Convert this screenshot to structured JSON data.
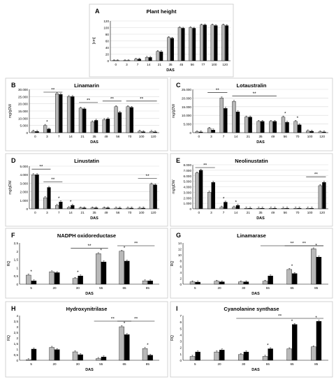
{
  "colors": {
    "grey": "#b8b8b8",
    "black": "#000000",
    "panel_border": "#c8c8c8",
    "grid": "#d9d9d9"
  },
  "chart_data": [
    {
      "letter": "A",
      "type": "bar",
      "title": "Plant height",
      "xlabel": "DAS",
      "ylabel": "[cm]",
      "categories": [
        "0",
        "3",
        "7",
        "14",
        "21",
        "35",
        "45",
        "56",
        "77",
        "100",
        "120"
      ],
      "ylim": [
        0,
        120
      ],
      "yticks": [
        "0",
        "20",
        "40",
        "60",
        "80",
        "100",
        "120"
      ],
      "grid": true,
      "series": [
        {
          "values": [
            0,
            0,
            5,
            10,
            28,
            70,
            100,
            100,
            108,
            108,
            108
          ]
        },
        {
          "values": [
            0,
            0,
            5,
            10,
            27,
            68,
            98,
            98,
            108,
            106,
            106
          ]
        }
      ],
      "brackets": []
    },
    {
      "letter": "B",
      "type": "bar",
      "title": "Linamarin",
      "xlabel": "DAS",
      "ylabel": "mg/gDW",
      "categories": [
        "0",
        "3",
        "7",
        "14",
        "21",
        "35",
        "49",
        "56",
        "70",
        "100",
        "120"
      ],
      "ylim": [
        0,
        30000
      ],
      "yticks": [
        "0",
        "5.000",
        "10.000",
        "15.000",
        "20.000",
        "25.000",
        "30.000"
      ],
      "grid": true,
      "series": [
        {
          "values": [
            1000,
            5000,
            27000,
            25000,
            17000,
            7500,
            9000,
            18000,
            18000,
            1000,
            800
          ]
        },
        {
          "values": [
            800,
            2500,
            26500,
            25000,
            16500,
            8500,
            9500,
            14000,
            17500,
            600,
            500
          ]
        }
      ],
      "stars": [
        1
      ],
      "brackets": [
        [
          1,
          2
        ],
        [
          4,
          5
        ],
        [
          6,
          7
        ],
        [
          8,
          10
        ]
      ]
    },
    {
      "letter": "C",
      "type": "bar",
      "title": "Lotaustralin",
      "xlabel": "DAS",
      "ylabel": "mg/gDW",
      "categories": [
        "0",
        "3",
        "7",
        "14",
        "21",
        "35",
        "49",
        "56",
        "70",
        "100",
        "120"
      ],
      "ylim": [
        0,
        25000
      ],
      "yticks": [
        "0",
        "5.000",
        "10.000",
        "15.000",
        "20.000",
        "25.000"
      ],
      "grid": true,
      "series": [
        {
          "values": [
            500,
            2500,
            20000,
            18000,
            9000,
            6500,
            6500,
            9000,
            6500,
            1000,
            500
          ]
        },
        {
          "values": [
            400,
            1500,
            14000,
            12000,
            9000,
            6500,
            6500,
            6000,
            4500,
            800,
            400
          ]
        }
      ],
      "stars": [
        7,
        8
      ],
      "brackets": [
        [
          1,
          2
        ],
        [
          3,
          6
        ]
      ]
    },
    {
      "letter": "D",
      "type": "bar",
      "title": "Linustatin",
      "xlabel": "DAS",
      "ylabel": "mg/gDW",
      "categories": [
        "0",
        "3",
        "7",
        "14",
        "21",
        "35",
        "49",
        "56",
        "70",
        "100",
        "120"
      ],
      "ylim": [
        0,
        5000
      ],
      "yticks": [
        "0",
        "1.000",
        "2.000",
        "3.000",
        "4.000",
        "5.000"
      ],
      "grid": true,
      "series": [
        {
          "values": [
            4000,
            1300,
            400,
            150,
            100,
            100,
            100,
            80,
            80,
            80,
            2900
          ]
        },
        {
          "values": [
            4000,
            2500,
            800,
            400,
            100,
            100,
            100,
            80,
            80,
            80,
            2800
          ]
        }
      ],
      "stars": [
        2,
        3
      ],
      "brackets": [
        [
          0,
          1
        ],
        [
          1,
          2
        ],
        [
          9,
          10
        ]
      ]
    },
    {
      "letter": "E",
      "type": "bar",
      "title": "Neolinustatin",
      "xlabel": "DAS",
      "ylabel": "mg/gDW",
      "categories": [
        "0",
        "3",
        "7",
        "14",
        "21",
        "35",
        "49",
        "56",
        "70",
        "100",
        "120"
      ],
      "ylim": [
        0,
        8000
      ],
      "yticks": [
        "0",
        "1.000",
        "2.000",
        "3.000",
        "4.000",
        "5.000",
        "6.000",
        "7.000",
        "8.000"
      ],
      "grid": true,
      "series": [
        {
          "values": [
            6500,
            3000,
            300,
            300,
            100,
            100,
            100,
            100,
            100,
            100,
            4200
          ]
        },
        {
          "values": [
            7000,
            4800,
            1200,
            600,
            100,
            100,
            100,
            100,
            100,
            100,
            4800
          ]
        }
      ],
      "stars": [
        2,
        3
      ],
      "brackets": [
        [
          0,
          1
        ],
        [
          9,
          10
        ]
      ]
    },
    {
      "letter": "F",
      "type": "bar",
      "title": "NADPH oxidoreductase",
      "xlabel": "DAS",
      "ylabel": "RQ",
      "categories": [
        "5",
        "20",
        "30",
        "55",
        "65",
        "85"
      ],
      "ylim": [
        0,
        2.5
      ],
      "yticks": [
        "0",
        "0,5",
        "1",
        "1,5",
        "2",
        "2,5"
      ],
      "grid": false,
      "series": [
        {
          "values": [
            0.55,
            0.75,
            0.35,
            1.85,
            2.0,
            0.2
          ]
        },
        {
          "values": [
            0.2,
            0.7,
            0.5,
            1.35,
            1.4,
            0.2
          ]
        }
      ],
      "stars": [
        0,
        2,
        3,
        4
      ],
      "brackets": [
        [
          2,
          3
        ],
        [
          4,
          5
        ]
      ]
    },
    {
      "letter": "G",
      "type": "bar",
      "title": "Linamarase",
      "xlabel": "DAS",
      "ylabel": "RQ",
      "categories": [
        "5",
        "20",
        "30",
        "55",
        "65",
        "85"
      ],
      "ylim": [
        0,
        14
      ],
      "yticks": [
        "0",
        "2",
        "4",
        "6",
        "8",
        "10",
        "12",
        "14"
      ],
      "grid": false,
      "series": [
        {
          "values": [
            0.8,
            1.0,
            0.8,
            1.0,
            5.0,
            12.0
          ]
        },
        {
          "values": [
            0.7,
            0.8,
            0.8,
            2.8,
            3.6,
            9.2
          ]
        }
      ],
      "stars": [
        4,
        5
      ],
      "brackets": [
        [
          3,
          5
        ],
        [
          4,
          5
        ]
      ]
    },
    {
      "letter": "H",
      "type": "bar",
      "title": "Hydroxynitrilase",
      "xlabel": "DAS",
      "ylabel": "RQ",
      "categories": [
        "5",
        "20",
        "30",
        "55",
        "65",
        "85"
      ],
      "ylim": [
        0,
        4
      ],
      "yticks": [
        "0",
        "0,5",
        "1",
        "1,5",
        "2",
        "2,5",
        "3",
        "3,5",
        "4"
      ],
      "grid": false,
      "series": [
        {
          "values": [
            0.05,
            1.15,
            0.75,
            0.15,
            3.0,
            1.05
          ]
        },
        {
          "values": [
            1.0,
            0.95,
            0.5,
            0.3,
            2.3,
            0.45
          ]
        }
      ],
      "stars": [
        4,
        5
      ],
      "brackets": [
        [
          3,
          4
        ],
        [
          4,
          5
        ]
      ]
    },
    {
      "letter": "I",
      "type": "bar",
      "title": "Cyanolanine synthase",
      "xlabel": "DAS",
      "ylabel": "RQ",
      "categories": [
        "5",
        "20",
        "30",
        "55",
        "65",
        "85"
      ],
      "ylim": [
        0,
        7
      ],
      "yticks": [
        "0",
        "1",
        "2",
        "3",
        "4",
        "5",
        "6",
        "7"
      ],
      "grid": false,
      "series": [
        {
          "values": [
            0.6,
            1.3,
            0.9,
            0.6,
            1.8,
            2.1
          ]
        },
        {
          "values": [
            1.3,
            1.6,
            1.3,
            1.8,
            5.6,
            6.1
          ]
        }
      ],
      "stars": [
        3,
        4,
        5
      ],
      "brackets": [
        [
          2,
          5
        ]
      ]
    }
  ]
}
